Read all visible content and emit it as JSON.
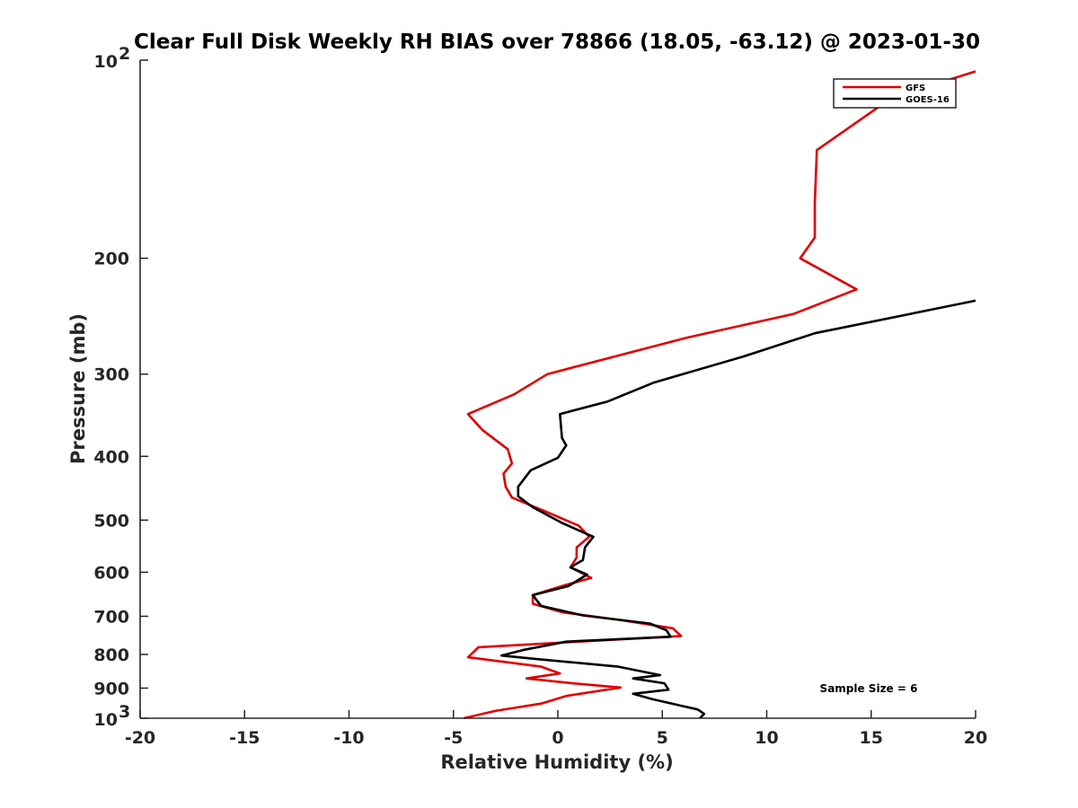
{
  "chart_data": {
    "type": "line",
    "title": "Clear Full Disk Weekly RH BIAS over 78866 (18.05, -63.12) @ 2023-01-30",
    "xlabel": "Relative Humidity (%)",
    "ylabel": "Pressure (mb)",
    "xlim": [
      -20,
      20
    ],
    "ylim": [
      100,
      1000
    ],
    "y_scale": "log",
    "y_reversed": true,
    "grid": false,
    "legend_position": "top-right",
    "x_ticks": [
      "-20",
      "-15",
      "-10",
      "-5",
      "0",
      "5",
      "10",
      "15",
      "20"
    ],
    "y_ticks": [
      {
        "value": 100,
        "base": "10",
        "exp": "2"
      },
      {
        "value": 200,
        "label": "200"
      },
      {
        "value": 300,
        "label": "300"
      },
      {
        "value": 400,
        "label": "400"
      },
      {
        "value": 500,
        "label": "500"
      },
      {
        "value": 600,
        "label": "600"
      },
      {
        "value": 700,
        "label": "700"
      },
      {
        "value": 800,
        "label": "800"
      },
      {
        "value": 900,
        "label": "900"
      },
      {
        "value": 1000,
        "base": "10",
        "exp": "3"
      }
    ],
    "annotation": "Sample Size = 6",
    "series": [
      {
        "name": "GFS",
        "color": "#e00000",
        "points": [
          [
            20.0,
            104
          ],
          [
            16.0,
            114
          ],
          [
            12.4,
            137
          ],
          [
            12.3,
            165
          ],
          [
            12.3,
            186
          ],
          [
            11.6,
            200
          ],
          [
            14.3,
            223
          ],
          [
            11.3,
            243
          ],
          [
            6.2,
            264
          ],
          [
            -0.5,
            300
          ],
          [
            -2.1,
            322
          ],
          [
            -4.3,
            345
          ],
          [
            -3.6,
            365
          ],
          [
            -2.4,
            390
          ],
          [
            -2.2,
            410
          ],
          [
            -2.6,
            425
          ],
          [
            -2.5,
            445
          ],
          [
            -2.2,
            462
          ],
          [
            -0.6,
            485
          ],
          [
            1.0,
            510
          ],
          [
            1.5,
            530
          ],
          [
            0.9,
            550
          ],
          [
            0.9,
            570
          ],
          [
            0.6,
            590
          ],
          [
            1.6,
            612
          ],
          [
            0.4,
            627
          ],
          [
            -1.2,
            650
          ],
          [
            -1.2,
            670
          ],
          [
            0.2,
            690
          ],
          [
            3.1,
            710
          ],
          [
            5.5,
            730
          ],
          [
            5.9,
            750
          ],
          [
            -3.8,
            780
          ],
          [
            -4.3,
            808
          ],
          [
            -0.8,
            835
          ],
          [
            0.1,
            855
          ],
          [
            -1.5,
            870
          ],
          [
            0.7,
            885
          ],
          [
            3.0,
            898
          ],
          [
            0.4,
            925
          ],
          [
            -0.8,
            950
          ],
          [
            -3.0,
            975
          ],
          [
            -4.5,
            1000
          ]
        ]
      },
      {
        "name": "GOES-16",
        "color": "#000000",
        "points": [
          [
            20.0,
            232
          ],
          [
            12.3,
            260
          ],
          [
            8.9,
            282
          ],
          [
            4.6,
            309
          ],
          [
            2.4,
            330
          ],
          [
            0.1,
            345
          ],
          [
            0.2,
            375
          ],
          [
            0.4,
            385
          ],
          [
            0.0,
            402
          ],
          [
            -1.3,
            420
          ],
          [
            -1.9,
            445
          ],
          [
            -1.9,
            460
          ],
          [
            -1.2,
            478
          ],
          [
            0.2,
            505
          ],
          [
            1.7,
            530
          ],
          [
            1.3,
            550
          ],
          [
            1.2,
            575
          ],
          [
            0.6,
            590
          ],
          [
            1.4,
            605
          ],
          [
            0.5,
            630
          ],
          [
            -1.2,
            650
          ],
          [
            -0.8,
            675
          ],
          [
            1.2,
            698
          ],
          [
            4.4,
            718
          ],
          [
            5.2,
            735
          ],
          [
            5.4,
            752
          ],
          [
            0.4,
            765
          ],
          [
            -1.7,
            788
          ],
          [
            -2.7,
            803
          ],
          [
            -1.2,
            812
          ],
          [
            2.9,
            835
          ],
          [
            4.9,
            860
          ],
          [
            3.6,
            870
          ],
          [
            5.1,
            885
          ],
          [
            5.3,
            905
          ],
          [
            3.6,
            918
          ],
          [
            4.5,
            935
          ],
          [
            6.7,
            970
          ],
          [
            7.0,
            985
          ],
          [
            6.8,
            1000
          ]
        ]
      }
    ]
  }
}
